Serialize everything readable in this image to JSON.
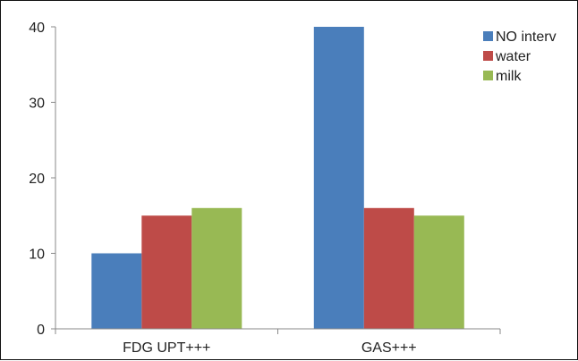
{
  "chart_data": {
    "type": "bar",
    "title": "",
    "xlabel": "",
    "ylabel": "",
    "categories": [
      "FDG UPT+++",
      "GAS+++"
    ],
    "series": [
      {
        "name": "NO interv",
        "color": "#4a7ebb",
        "values": [
          10,
          40
        ]
      },
      {
        "name": "water",
        "color": "#be4b48",
        "values": [
          15,
          16
        ]
      },
      {
        "name": "milk",
        "color": "#98b954",
        "values": [
          16,
          15
        ]
      }
    ],
    "ylim": [
      0,
      40
    ],
    "yticks": [
      0,
      10,
      20,
      30,
      40
    ],
    "grid": false,
    "legend_position": "top-right"
  }
}
